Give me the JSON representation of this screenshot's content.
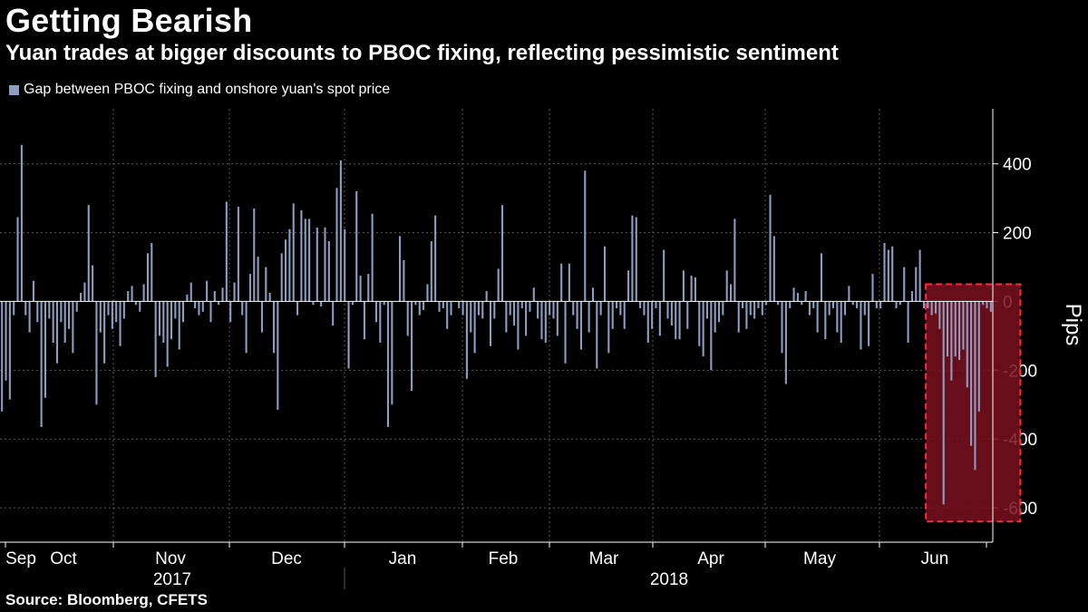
{
  "title": "Getting Bearish",
  "subtitle": "Yuan trades at bigger discounts to PBOC fixing, reflecting pessimistic sentiment",
  "source": "Source: Bloomberg, CFETS",
  "colors": {
    "background": "#000000",
    "bar": "#8d9ec0",
    "highlight_fill": "#7a0f1e",
    "highlight_border": "#ff2a3c",
    "grid": "#5a5a5a",
    "text": "#ffffff"
  },
  "chart_data": {
    "type": "bar",
    "title": "Getting Bearish",
    "subtitle": "Yuan trades at bigger discounts to PBOC fixing, reflecting pessimistic sentiment",
    "ylabel": "Pips",
    "ylim": [
      -700,
      560
    ],
    "yticks": [
      -600,
      -400,
      -200,
      0,
      200,
      400
    ],
    "grid": true,
    "legend_position": "top-left",
    "month_labels": [
      "Sep",
      "Oct",
      "Nov",
      "Dec",
      "Jan",
      "Feb",
      "Mar",
      "Apr",
      "May",
      "Jun"
    ],
    "year_labels": [
      "2017",
      "2018"
    ],
    "series": [
      {
        "name": "Gap between PBOC fixing and onshore yuan's spot price",
        "values": [
          -320,
          -230,
          -285,
          -40,
          245,
          455,
          -40,
          -90,
          60,
          -60,
          -365,
          -280,
          -50,
          -120,
          -180,
          -60,
          -120,
          -80,
          -150,
          -30,
          25,
          55,
          280,
          105,
          -300,
          -90,
          -180,
          -40,
          -80,
          -60,
          -130,
          -50,
          30,
          45,
          -10,
          -30,
          50,
          140,
          170,
          -220,
          -100,
          -120,
          -190,
          -110,
          -50,
          -140,
          -60,
          20,
          55,
          -20,
          -40,
          -30,
          60,
          -60,
          30,
          -10,
          40,
          290,
          -60,
          55,
          275,
          -40,
          -150,
          80,
          270,
          130,
          -90,
          100,
          25,
          -150,
          -315,
          140,
          180,
          210,
          285,
          -40,
          265,
          240,
          240,
          -10,
          215,
          -15,
          215,
          175,
          -70,
          330,
          410,
          210,
          -195,
          -10,
          320,
          75,
          -110,
          80,
          255,
          -60,
          -120,
          -10,
          -365,
          -300,
          0,
          190,
          120,
          -100,
          -260,
          -10,
          -40,
          -25,
          50,
          175,
          250,
          -30,
          -20,
          -80,
          -40,
          0,
          -20,
          -40,
          -225,
          -90,
          -150,
          -40,
          -50,
          30,
          -130,
          -50,
          95,
          280,
          -90,
          -40,
          -70,
          -140,
          -20,
          -100,
          -30,
          40,
          -50,
          -110,
          -120,
          -40,
          -50,
          -100,
          110,
          -180,
          110,
          -40,
          -80,
          -140,
          380,
          -90,
          40,
          -195,
          -40,
          160,
          -150,
          -80,
          -20,
          -40,
          -80,
          90,
          250,
          245,
          -20,
          -40,
          -120,
          -80,
          -20,
          -100,
          150,
          -50,
          -70,
          -110,
          -110,
          90,
          -80,
          75,
          70,
          -130,
          -160,
          -50,
          -200,
          -90,
          -60,
          -40,
          90,
          50,
          240,
          -90,
          -20,
          -80,
          -40,
          -50,
          -20,
          -40,
          -10,
          310,
          190,
          -10,
          -150,
          -240,
          -20,
          40,
          25,
          -10,
          30,
          -40,
          -20,
          -90,
          140,
          -110,
          -40,
          -20,
          -90,
          -120,
          -40,
          45,
          -10,
          -20,
          -140,
          -40,
          -130,
          80,
          -20,
          -20,
          170,
          150,
          160,
          -20,
          -10,
          100,
          -120,
          30,
          100,
          150,
          -20,
          -20,
          -40,
          -35,
          -80,
          -590,
          -160,
          -230,
          -160,
          -170,
          -140,
          -250,
          -420,
          -490,
          -320,
          -10,
          -20,
          -30
        ]
      }
    ],
    "annotations": [
      {
        "type": "highlight-box",
        "from_index": 235,
        "to_index": 258,
        "ymin": -640,
        "ymax": 50
      }
    ]
  }
}
